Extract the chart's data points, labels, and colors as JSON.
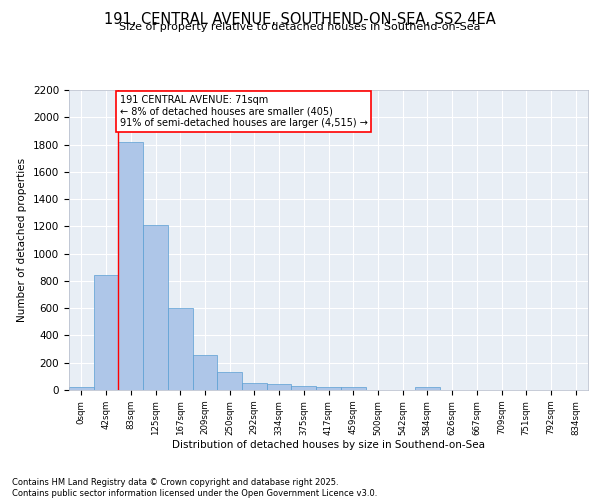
{
  "title_line1": "191, CENTRAL AVENUE, SOUTHEND-ON-SEA, SS2 4EA",
  "title_line2": "Size of property relative to detached houses in Southend-on-Sea",
  "xlabel": "Distribution of detached houses by size in Southend-on-Sea",
  "ylabel": "Number of detached properties",
  "bar_labels": [
    "0sqm",
    "42sqm",
    "83sqm",
    "125sqm",
    "167sqm",
    "209sqm",
    "250sqm",
    "292sqm",
    "334sqm",
    "375sqm",
    "417sqm",
    "459sqm",
    "500sqm",
    "542sqm",
    "584sqm",
    "626sqm",
    "667sqm",
    "709sqm",
    "751sqm",
    "792sqm",
    "834sqm"
  ],
  "bar_values": [
    25,
    845,
    1820,
    1210,
    600,
    255,
    135,
    50,
    42,
    30,
    20,
    20,
    0,
    0,
    20,
    0,
    0,
    0,
    0,
    0,
    0
  ],
  "bar_color": "#aec6e8",
  "bar_edgecolor": "#5a9fd4",
  "vline_x": 1.5,
  "vline_color": "red",
  "ylim": [
    0,
    2200
  ],
  "yticks": [
    0,
    200,
    400,
    600,
    800,
    1000,
    1200,
    1400,
    1600,
    1800,
    2000,
    2200
  ],
  "annotation_text": "191 CENTRAL AVENUE: 71sqm\n← 8% of detached houses are smaller (405)\n91% of semi-detached houses are larger (4,515) →",
  "annotation_box_color": "white",
  "annotation_box_edgecolor": "red",
  "footer_text": "Contains HM Land Registry data © Crown copyright and database right 2025.\nContains public sector information licensed under the Open Government Licence v3.0.",
  "bg_color": "#e8eef5",
  "grid_color": "white",
  "font_family": "DejaVu Sans"
}
